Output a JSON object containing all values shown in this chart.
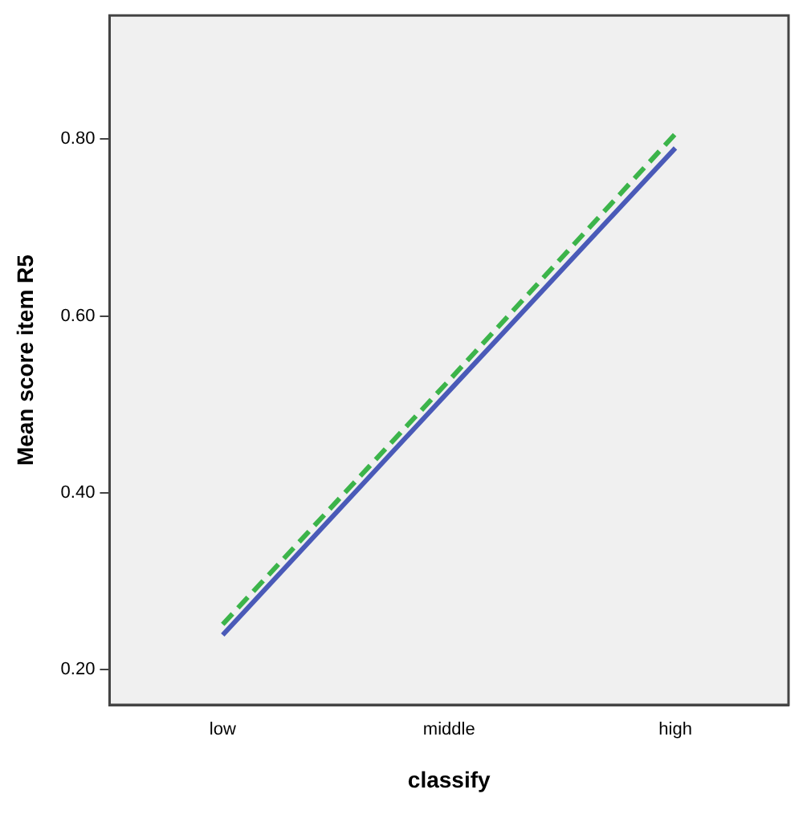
{
  "chart_data": {
    "type": "line",
    "xlabel": "classify",
    "ylabel": "Mean score item R5",
    "categories": [
      "low",
      "middle",
      "high"
    ],
    "series": [
      {
        "color": "#4a5ab8",
        "values": [
          0.239,
          0.515,
          0.79
        ],
        "line_style": "solid"
      },
      {
        "color": "#3cb44a",
        "values": [
          0.251,
          0.527,
          0.806
        ],
        "line_style": "dashed"
      }
    ],
    "ylim": [
      0.16,
      0.94
    ],
    "yticks": [
      {
        "value": 0.2,
        "label": "0.20"
      },
      {
        "value": 0.4,
        "label": "0.40"
      },
      {
        "value": 0.6,
        "label": "0.60"
      },
      {
        "value": 0.8,
        "label": "0.80"
      }
    ],
    "grid": false,
    "legend": false,
    "marker": "none"
  }
}
